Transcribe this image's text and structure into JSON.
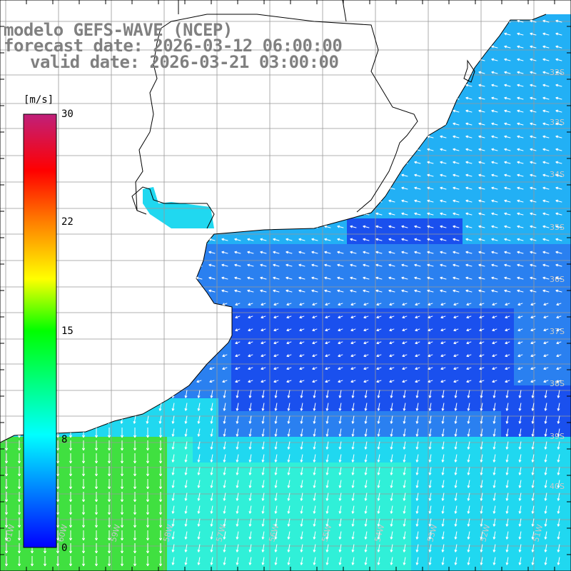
{
  "title": {
    "model": "modelo GEFS-WAVE (NCEP)",
    "forecast": "forecast date: 2026-03-12 06:00:00",
    "valid": "valid date: 2026-03-21 03:00:00"
  },
  "colorbar": {
    "unit": "[m/s]",
    "min": 0,
    "max": 30,
    "tick_labels": [
      "30",
      "22",
      "15",
      "8",
      "0"
    ],
    "tick_values": [
      30,
      22,
      15,
      8,
      0
    ],
    "colors": [
      "#0000ff",
      "#0080ff",
      "#00ffff",
      "#00ff80",
      "#00ff00",
      "#ffff00",
      "#ff8000",
      "#ff0000",
      "#c0207a"
    ]
  },
  "map": {
    "lat_labels": [
      "32S",
      "33S",
      "34S",
      "35S",
      "36S",
      "37S",
      "38S",
      "39S",
      "40S"
    ],
    "lon_labels": [
      "61W",
      "60W",
      "59W",
      "58W",
      "57W",
      "56W",
      "55W",
      "54W",
      "53W",
      "52W",
      "51W"
    ],
    "field_colors": {
      "deep_blue": "#1a50ee",
      "mid_blue": "#2a80f0",
      "light_blue": "#22b0f5",
      "cyan": "#20d8f0",
      "aqua": "#30f0d8",
      "green": "#40e040"
    },
    "land_color": "#ffffff",
    "grid_color": "#999999",
    "arrow_color": "#ffffff"
  }
}
